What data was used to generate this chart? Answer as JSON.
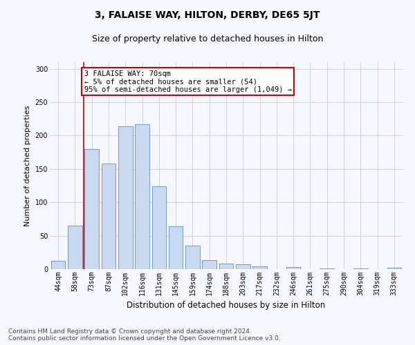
{
  "title": "3, FALAISE WAY, HILTON, DERBY, DE65 5JT",
  "subtitle": "Size of property relative to detached houses in Hilton",
  "xlabel": "Distribution of detached houses by size in Hilton",
  "ylabel": "Number of detached properties",
  "categories": [
    "44sqm",
    "58sqm",
    "73sqm",
    "87sqm",
    "102sqm",
    "116sqm",
    "131sqm",
    "145sqm",
    "159sqm",
    "174sqm",
    "188sqm",
    "203sqm",
    "217sqm",
    "232sqm",
    "246sqm",
    "261sqm",
    "275sqm",
    "290sqm",
    "304sqm",
    "319sqm",
    "333sqm"
  ],
  "values": [
    12,
    65,
    180,
    158,
    214,
    217,
    124,
    64,
    35,
    13,
    8,
    7,
    4,
    0,
    3,
    0,
    1,
    0,
    1,
    0,
    2
  ],
  "bar_color": "#c9d9f0",
  "bar_edge_color": "#7098c8",
  "annotation_box_text": "3 FALAISE WAY: 70sqm\n← 5% of detached houses are smaller (54)\n95% of semi-detached houses are larger (1,049) →",
  "ylim": [
    0,
    310
  ],
  "yticks": [
    0,
    50,
    100,
    150,
    200,
    250,
    300
  ],
  "grid_color": "#cccccc",
  "background_color": "#f7f7ff",
  "footer_line1": "Contains HM Land Registry data © Crown copyright and database right 2024.",
  "footer_line2": "Contains public sector information licensed under the Open Government Licence v3.0.",
  "red_line_color": "#cc0000",
  "annotation_box_edge_color": "#cc0000",
  "title_fontsize": 10,
  "subtitle_fontsize": 9,
  "xlabel_fontsize": 8.5,
  "ylabel_fontsize": 8,
  "tick_fontsize": 7,
  "footer_fontsize": 6.5,
  "annot_fontsize": 7.5
}
